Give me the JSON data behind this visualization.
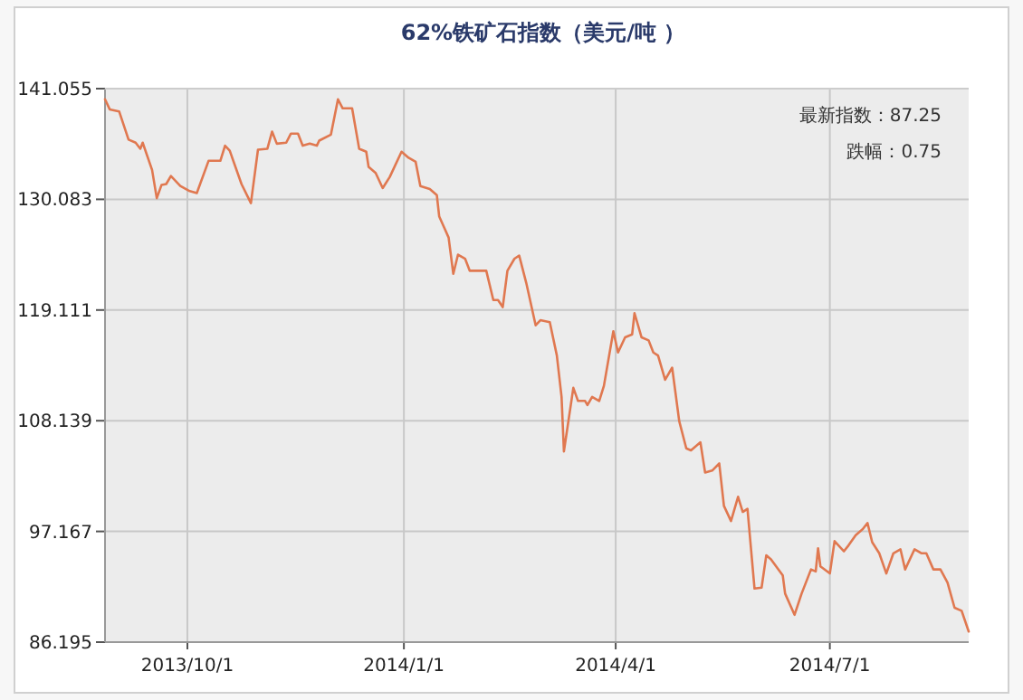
{
  "chart_data": {
    "type": "line",
    "title": "62%铁矿石指数（美元/吨 ）",
    "annotations": [
      "最新指数：87.25",
      "跌幅：0.75"
    ],
    "grid": true,
    "xlim": [
      "2013-08-27",
      "2014-08-29"
    ],
    "xticks": [
      {
        "value": "2013-10-01",
        "label": "2013/10/1"
      },
      {
        "value": "2014-01-01",
        "label": "2014/1/1"
      },
      {
        "value": "2014-04-01",
        "label": "2014/4/1"
      },
      {
        "value": "2014-07-01",
        "label": "2014/7/1"
      }
    ],
    "ylim": [
      86.195,
      141.055
    ],
    "yticks": [
      86.195,
      97.167,
      108.139,
      119.111,
      130.083,
      141.055
    ],
    "series": [
      {
        "color": "#e07850",
        "x": [
          "2013-08-27",
          "2013-08-29",
          "2013-09-02",
          "2013-09-06",
          "2013-09-09",
          "2013-09-11",
          "2013-09-12",
          "2013-09-16",
          "2013-09-18",
          "2013-09-20",
          "2013-09-22",
          "2013-09-24",
          "2013-09-28",
          "2013-10-02",
          "2013-10-05",
          "2013-10-10",
          "2013-10-15",
          "2013-10-17",
          "2013-10-19",
          "2013-10-24",
          "2013-10-28",
          "2013-10-31",
          "2013-11-04",
          "2013-11-06",
          "2013-11-08",
          "2013-11-12",
          "2013-11-14",
          "2013-11-17",
          "2013-11-19",
          "2013-11-22",
          "2013-11-25",
          "2013-11-26",
          "2013-12-01",
          "2013-12-04",
          "2013-12-06",
          "2013-12-10",
          "2013-12-13",
          "2013-12-16",
          "2013-12-17",
          "2013-12-20",
          "2013-12-23",
          "2013-12-26",
          "2013-12-31",
          "2014-01-03",
          "2014-01-06",
          "2014-01-08",
          "2014-01-12",
          "2014-01-15",
          "2014-01-16",
          "2014-01-20",
          "2014-01-22",
          "2014-01-24",
          "2014-01-27",
          "2014-01-29",
          "2014-02-05",
          "2014-02-08",
          "2014-02-10",
          "2014-02-12",
          "2014-02-14",
          "2014-02-17",
          "2014-02-19",
          "2014-02-22",
          "2014-02-26",
          "2014-02-28",
          "2014-03-04",
          "2014-03-07",
          "2014-03-09",
          "2014-03-10",
          "2014-03-14",
          "2014-03-16",
          "2014-03-19",
          "2014-03-20",
          "2014-03-22",
          "2014-03-25",
          "2014-03-27",
          "2014-03-31",
          "2014-04-02",
          "2014-04-05",
          "2014-04-08",
          "2014-04-09",
          "2014-04-12",
          "2014-04-15",
          "2014-04-17",
          "2014-04-19",
          "2014-04-22",
          "2014-04-25",
          "2014-04-28",
          "2014-05-01",
          "2014-05-03",
          "2014-05-07",
          "2014-05-09",
          "2014-05-12",
          "2014-05-15",
          "2014-05-17",
          "2014-05-20",
          "2014-05-23",
          "2014-05-25",
          "2014-05-27",
          "2014-05-30",
          "2014-06-02",
          "2014-06-04",
          "2014-06-06",
          "2014-06-11",
          "2014-06-12",
          "2014-06-16",
          "2014-06-19",
          "2014-06-23",
          "2014-06-25",
          "2014-06-26",
          "2014-06-27",
          "2014-07-01",
          "2014-07-03",
          "2014-07-07",
          "2014-07-09",
          "2014-07-12",
          "2014-07-15",
          "2014-07-17",
          "2014-07-19",
          "2014-07-22",
          "2014-07-25",
          "2014-07-28",
          "2014-07-31",
          "2014-08-02",
          "2014-08-06",
          "2014-08-09",
          "2014-08-11",
          "2014-08-14",
          "2014-08-17",
          "2014-08-20",
          "2014-08-23",
          "2014-08-26",
          "2014-08-29"
        ],
        "values": [
          140.0,
          139.0,
          138.8,
          136.0,
          135.7,
          135.1,
          135.7,
          133.0,
          130.2,
          131.5,
          131.6,
          132.4,
          131.4,
          130.9,
          130.7,
          133.9,
          133.9,
          135.4,
          134.9,
          131.6,
          129.7,
          135.0,
          135.1,
          136.8,
          135.6,
          135.7,
          136.6,
          136.6,
          135.4,
          135.6,
          135.4,
          135.9,
          136.5,
          140.0,
          139.1,
          139.1,
          135.1,
          134.8,
          133.3,
          132.7,
          131.2,
          132.3,
          134.8,
          134.2,
          133.8,
          131.4,
          131.1,
          130.5,
          128.4,
          126.3,
          122.7,
          124.6,
          124.2,
          123.0,
          123.0,
          120.1,
          120.1,
          119.4,
          123.0,
          124.2,
          124.5,
          121.8,
          117.6,
          118.1,
          117.9,
          114.6,
          110.5,
          105.1,
          111.4,
          110.1,
          110.1,
          109.7,
          110.5,
          110.1,
          111.6,
          117.0,
          114.9,
          116.4,
          116.7,
          118.8,
          116.4,
          116.1,
          114.9,
          114.6,
          112.2,
          113.4,
          108.1,
          105.4,
          105.2,
          106.0,
          103.0,
          103.2,
          103.9,
          99.7,
          98.2,
          100.6,
          99.1,
          99.4,
          91.5,
          91.6,
          94.8,
          94.4,
          92.8,
          91.0,
          88.9,
          91.0,
          93.4,
          93.2,
          95.5,
          93.7,
          93.0,
          96.2,
          95.2,
          95.8,
          96.8,
          97.4,
          98.0,
          96.1,
          95.0,
          93.0,
          95.0,
          95.4,
          93.4,
          95.4,
          95.0,
          95.0,
          93.4,
          93.4,
          92.1,
          89.6,
          89.3,
          87.25
        ]
      }
    ]
  }
}
